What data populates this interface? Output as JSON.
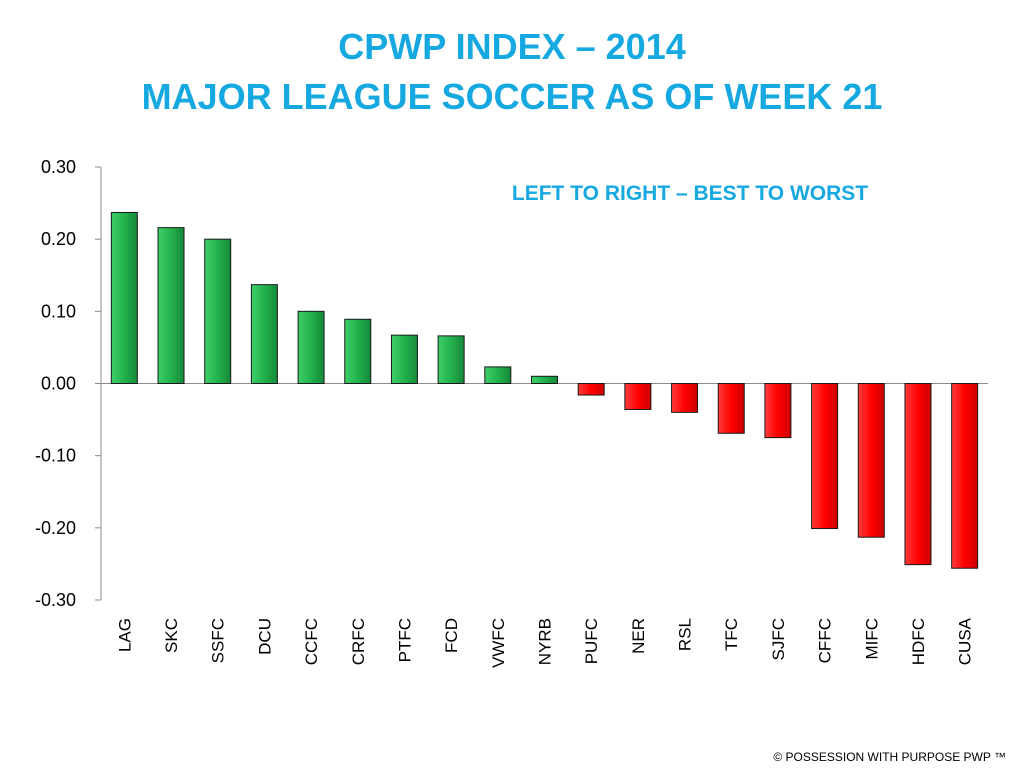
{
  "chart_data": {
    "type": "bar",
    "title": "CPWP INDEX – 2014",
    "subtitle": "MAJOR LEAGUE SOCCER AS OF WEEK 21",
    "annotation": "LEFT TO RIGHT – BEST TO WORST",
    "xlabel": "",
    "ylabel": "",
    "ylim": [
      -0.3,
      0.3
    ],
    "yticks": [
      0.3,
      0.2,
      0.1,
      0.0,
      -0.1,
      -0.2,
      -0.3
    ],
    "ytick_labels": [
      "0.30",
      "0.20",
      "0.10",
      "0.00",
      "-0.10",
      "-0.20",
      "-0.30"
    ],
    "grid": false,
    "legend": "none",
    "categories": [
      "LAG",
      "SKC",
      "SSFC",
      "DCU",
      "CCFC",
      "CRFC",
      "PTFC",
      "FCD",
      "VWFC",
      "NYRB",
      "PUFC",
      "NER",
      "RSL",
      "TFC",
      "SJFC",
      "CFFC",
      "MIFC",
      "HDFC",
      "CUSA"
    ],
    "values": [
      0.237,
      0.216,
      0.2,
      0.137,
      0.1,
      0.089,
      0.067,
      0.066,
      0.023,
      0.01,
      -0.016,
      -0.036,
      -0.04,
      -0.069,
      -0.075,
      -0.201,
      -0.213,
      -0.251,
      -0.256
    ],
    "colors": {
      "positive": "#22b14c",
      "negative": "#ff0000"
    }
  },
  "footer": "© POSSESSION WITH PURPOSE  PWP ™"
}
